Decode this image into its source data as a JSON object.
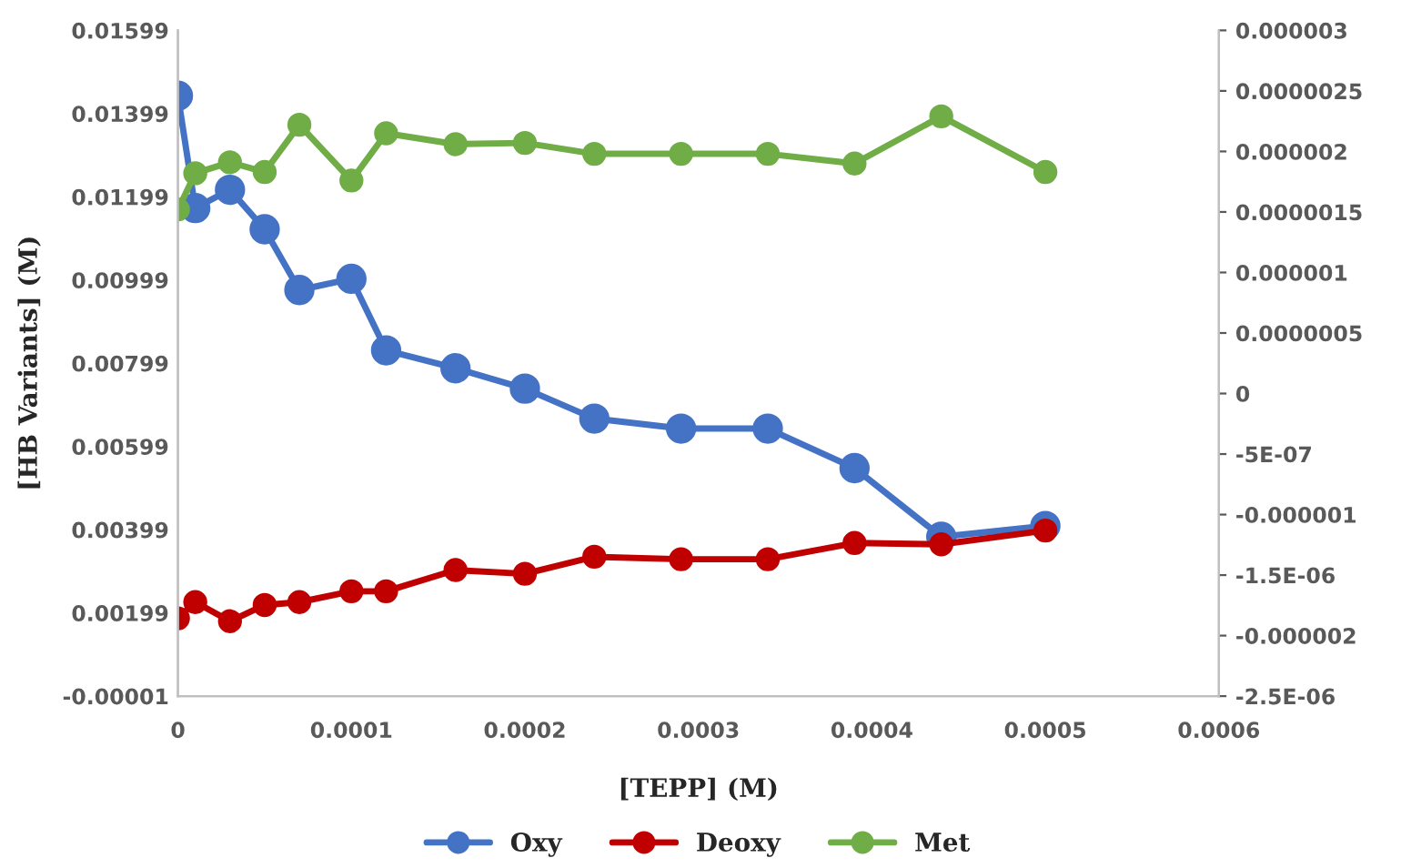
{
  "chart_data": {
    "type": "line",
    "xlabel": "[TEPP] (M)",
    "ylabel": "[HB Variants] (M)",
    "x": [
      0,
      1e-05,
      3e-05,
      5e-05,
      7e-05,
      0.0001,
      0.00012,
      0.00016,
      0.0002,
      0.00024,
      0.00029,
      0.00034,
      0.00039,
      0.00044,
      0.0005
    ],
    "series": [
      {
        "name": "Oxy",
        "color": "#4472c4",
        "values": [
          0.01442,
          0.01172,
          0.01216,
          0.01121,
          0.00975,
          0.01002,
          0.0083,
          0.00787,
          0.00738,
          0.00666,
          0.00642,
          0.00642,
          0.00547,
          0.00382,
          0.00408
        ]
      },
      {
        "name": "Deoxy",
        "color": "#c00000",
        "values": [
          0.00186,
          0.00225,
          0.00179,
          0.00218,
          0.00225,
          0.00251,
          0.00251,
          0.00302,
          0.00293,
          0.00334,
          0.00328,
          0.00328,
          0.00367,
          0.00364,
          0.00397
        ]
      },
      {
        "name": "Met",
        "color": "#70ad47",
        "axis": "y2",
        "values": [
          1.52e-06,
          1.82e-06,
          1.91e-06,
          1.83e-06,
          2.22e-06,
          1.76e-06,
          2.15e-06,
          2.06e-06,
          2.07e-06,
          1.98e-06,
          1.98e-06,
          1.98e-06,
          1.9e-06,
          2.29e-06,
          1.83e-06
        ]
      }
    ],
    "xlim": [
      0,
      0.0006
    ],
    "xticks": [
      0,
      0.0001,
      0.0002,
      0.0003,
      0.0004,
      0.0005,
      0.0006
    ],
    "ylim": [
      -1e-05,
      0.01599
    ],
    "yticks": [
      {
        "value": -1e-05,
        "label": "-0.00001"
      },
      0.00199,
      0.00399,
      0.00599,
      0.00799,
      0.00999,
      0.01199,
      0.01399,
      0.01599
    ],
    "y2lim": [
      -2.5e-06,
      3e-06
    ],
    "y2ticks": [
      {
        "value": -2.5e-06,
        "label": "-2.5E-06"
      },
      {
        "value": -2e-06,
        "label": "-0.000002"
      },
      {
        "value": -1.5e-06,
        "label": "-1.5E-06"
      },
      {
        "value": -1e-06,
        "label": "-0.000001"
      },
      {
        "value": -5e-07,
        "label": "-5E-07"
      },
      {
        "value": 0,
        "label": "0"
      },
      {
        "value": 5e-07,
        "label": "0.0000005"
      },
      {
        "value": 1e-06,
        "label": "0.000001"
      },
      {
        "value": 1.5e-06,
        "label": "0.0000015"
      },
      {
        "value": 2e-06,
        "label": "0.000002"
      },
      {
        "value": 2.5e-06,
        "label": "0.0000025"
      },
      {
        "value": 3e-06,
        "label": "0.000003"
      }
    ],
    "grid": false,
    "legend": "bottom",
    "marker": "circle",
    "line_style": "solid"
  }
}
